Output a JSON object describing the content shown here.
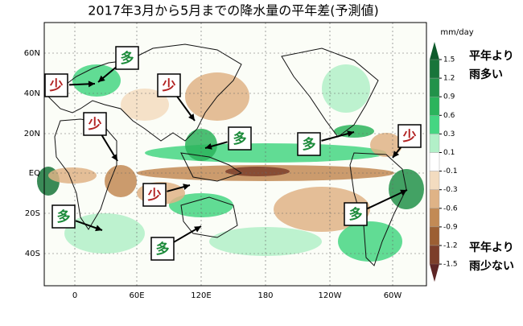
{
  "map": {
    "title": "2017年3月から5月までの降水量の平年差(予測値)",
    "units": "mm/day",
    "lat_labels": [
      "60N",
      "40N",
      "20N",
      "EQ",
      "20S",
      "40S"
    ],
    "lon_labels": [
      "0",
      "60E",
      "120E",
      "180",
      "120W",
      "60W"
    ],
    "colorbar": {
      "levels": [
        1.5,
        1.2,
        0.9,
        0.6,
        0.3,
        0.1,
        -0.1,
        -0.3,
        -0.6,
        -0.9,
        -1.2,
        -1.5
      ],
      "colors": [
        "#0e5a2c",
        "#18753a",
        "#22924a",
        "#2bb45c",
        "#45d682",
        "#b2f0c8",
        "#ffffff",
        "#f3dcc0",
        "#dfb386",
        "#c28a55",
        "#9c5f33",
        "#7c3e2a",
        "#5e2626"
      ]
    },
    "legend_wet": [
      "平年より",
      "雨多い"
    ],
    "legend_dry": [
      "平年より",
      "雨少ない"
    ],
    "callouts": [
      {
        "label": "少"
      },
      {
        "label": "多"
      },
      {
        "label": "少"
      },
      {
        "label": "少"
      },
      {
        "label": "多"
      },
      {
        "label": "多"
      },
      {
        "label": "少"
      },
      {
        "label": "少"
      },
      {
        "label": "多"
      },
      {
        "label": "多"
      },
      {
        "label": "多"
      }
    ]
  }
}
